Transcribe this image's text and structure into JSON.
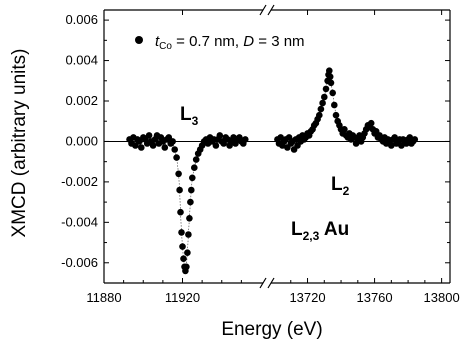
{
  "chart_data": {
    "type": "scatter",
    "xlabel": "Energy (eV)",
    "ylabel": "XMCD (arbitrary units)",
    "ylim": [
      -0.007,
      0.0065
    ],
    "yticks": [
      "0.006",
      "0.004",
      "0.002",
      "0.000",
      "-0.002",
      "-0.004",
      "-0.006"
    ],
    "broken_x_axis": true,
    "segments": [
      {
        "name": "L3 region",
        "xlim": [
          11880,
          11960
        ],
        "xticks": [
          "11880",
          "11920"
        ]
      },
      {
        "name": "L2 region",
        "xlim": [
          13700,
          13805
        ],
        "xticks": [
          "13720",
          "13760",
          "13800"
        ]
      }
    ],
    "zero_line": true,
    "legend": {
      "position": "top-left",
      "marker": "filled-circle",
      "label_parts": {
        "t": "t",
        "sub": "Co",
        "rest": " = 0.7 nm, ",
        "d": "D",
        "tail": " = 3 nm"
      }
    },
    "annotations": {
      "l3": {
        "main": "L",
        "sub": "3"
      },
      "l2": {
        "main": "L",
        "sub": "2"
      },
      "au": {
        "main": "L",
        "sub": "2,3",
        "tail": " Au"
      }
    },
    "series": [
      {
        "segment": 0,
        "points": [
          [
            11893,
            0.0001
          ],
          [
            11894,
            -0.0001
          ],
          [
            11895,
            0.0002
          ],
          [
            11896,
            -0.0002
          ],
          [
            11897,
            0.0001
          ],
          [
            11898,
            0.0
          ],
          [
            11899,
            -0.0003
          ],
          [
            11900,
            0.0002
          ],
          [
            11901,
            0.0001
          ],
          [
            11902,
            -0.0001
          ],
          [
            11903,
            0.0003
          ],
          [
            11904,
            0.0
          ],
          [
            11905,
            -0.0002
          ],
          [
            11906,
            0.0001
          ],
          [
            11907,
            0.0003
          ],
          [
            11908,
            -0.0001
          ],
          [
            11909,
            0.0002
          ],
          [
            11910,
            0.0
          ],
          [
            11911,
            -0.0003
          ],
          [
            11912,
            0.0001
          ],
          [
            11913,
            0.0002
          ],
          [
            11914,
            -0.0001
          ],
          [
            11915,
            0.0
          ],
          [
            11916,
            -0.0004
          ],
          [
            11917,
            -0.0008
          ],
          [
            11918,
            -0.0016
          ],
          [
            11918.5,
            -0.0024
          ],
          [
            11919,
            -0.0035
          ],
          [
            11919.5,
            -0.0045
          ],
          [
            11920,
            -0.0052
          ],
          [
            11920.5,
            -0.0058
          ],
          [
            11921,
            -0.0062
          ],
          [
            11921.5,
            -0.0064
          ],
          [
            11922,
            -0.0062
          ],
          [
            11922.5,
            -0.0055
          ],
          [
            11923,
            -0.0046
          ],
          [
            11923.5,
            -0.0038
          ],
          [
            11924,
            -0.003
          ],
          [
            11924.5,
            -0.0024
          ],
          [
            11925,
            -0.0018
          ],
          [
            11926,
            -0.0013
          ],
          [
            11927,
            -0.0009
          ],
          [
            11928,
            -0.0006
          ],
          [
            11929,
            -0.0004
          ],
          [
            11930,
            -0.0002
          ],
          [
            11931,
            0.0
          ],
          [
            11932,
            0.0001
          ],
          [
            11933,
            -0.0001
          ],
          [
            11934,
            0.0002
          ],
          [
            11935,
            0.0
          ],
          [
            11936,
            0.0001
          ],
          [
            11937,
            -0.0002
          ],
          [
            11938,
            0.0001
          ],
          [
            11939,
            0.0003
          ],
          [
            11940,
            0.0
          ],
          [
            11941,
            -0.0001
          ],
          [
            11942,
            0.0002
          ],
          [
            11943,
            0.0001
          ],
          [
            11944,
            -0.0002
          ],
          [
            11945,
            0.0
          ],
          [
            11946,
            0.0002
          ],
          [
            11947,
            -0.0001
          ],
          [
            11948,
            0.0001
          ],
          [
            11949,
            0.0002
          ],
          [
            11950,
            0.0
          ],
          [
            11951,
            -0.0001
          ],
          [
            11952,
            0.0001
          ]
        ]
      },
      {
        "segment": 1,
        "points": [
          [
            13702,
            0.0001
          ],
          [
            13703,
            -0.0001
          ],
          [
            13704,
            0.0002
          ],
          [
            13705,
            -0.0002
          ],
          [
            13706,
            0.0
          ],
          [
            13707,
            0.0001
          ],
          [
            13708,
            -0.0003
          ],
          [
            13709,
            0.0002
          ],
          [
            13710,
            -0.0001
          ],
          [
            13711,
            0.0
          ],
          [
            13712,
            -0.0004
          ],
          [
            13713,
            0.0001
          ],
          [
            13714,
            -0.0002
          ],
          [
            13715,
            0.0002
          ],
          [
            13716,
            0.0
          ],
          [
            13717,
            0.0003
          ],
          [
            13718,
            0.0001
          ],
          [
            13719,
            0.0002
          ],
          [
            13720,
            0.0004
          ],
          [
            13721,
            0.0003
          ],
          [
            13722,
            0.0005
          ],
          [
            13723,
            0.0006
          ],
          [
            13724,
            0.0008
          ],
          [
            13725,
            0.0009
          ],
          [
            13726,
            0.0011
          ],
          [
            13727,
            0.0013
          ],
          [
            13728,
            0.0016
          ],
          [
            13729,
            0.0019
          ],
          [
            13730,
            0.0022
          ],
          [
            13731,
            0.0026
          ],
          [
            13732,
            0.003
          ],
          [
            13732.5,
            0.0033
          ],
          [
            13733,
            0.0035
          ],
          [
            13733.5,
            0.0032
          ],
          [
            13734,
            0.0029
          ],
          [
            13735,
            0.0024
          ],
          [
            13736,
            0.0018
          ],
          [
            13737,
            0.0013
          ],
          [
            13738,
            0.001
          ],
          [
            13739,
            0.0008
          ],
          [
            13740,
            0.0006
          ],
          [
            13741,
            0.0004
          ],
          [
            13742,
            0.0006
          ],
          [
            13743,
            0.0003
          ],
          [
            13744,
            0.0002
          ],
          [
            13745,
            0.0004
          ],
          [
            13746,
            0.0001
          ],
          [
            13747,
            0.0003
          ],
          [
            13748,
            0.0002
          ],
          [
            13749,
            -0.0001
          ],
          [
            13750,
            0.0001
          ],
          [
            13751,
            0.0003
          ],
          [
            13752,
            0.0
          ],
          [
            13753,
            0.0002
          ],
          [
            13754,
            0.0004
          ],
          [
            13755,
            0.0006
          ],
          [
            13756,
            0.0008
          ],
          [
            13757,
            0.0007
          ],
          [
            13758,
            0.0009
          ],
          [
            13759,
            0.0006
          ],
          [
            13760,
            0.0004
          ],
          [
            13761,
            0.0005
          ],
          [
            13762,
            0.0002
          ],
          [
            13763,
            0.0003
          ],
          [
            13764,
            0.0001
          ],
          [
            13765,
            0.0
          ],
          [
            13766,
            0.0002
          ],
          [
            13767,
            -0.0001
          ],
          [
            13768,
            0.0001
          ],
          [
            13769,
            0.0
          ],
          [
            13770,
            -0.0002
          ],
          [
            13771,
            0.0001
          ],
          [
            13772,
            0.0002
          ],
          [
            13773,
            -0.0001
          ],
          [
            13774,
            0.0
          ],
          [
            13775,
            0.0001
          ],
          [
            13776,
            -0.0002
          ],
          [
            13777,
            0.0001
          ],
          [
            13778,
            0.0
          ],
          [
            13779,
            -0.0001
          ],
          [
            13780,
            0.0001
          ],
          [
            13781,
            0.0002
          ],
          [
            13782,
            -0.0001
          ],
          [
            13783,
            0.0
          ],
          [
            13784,
            0.0001
          ]
        ]
      }
    ]
  }
}
